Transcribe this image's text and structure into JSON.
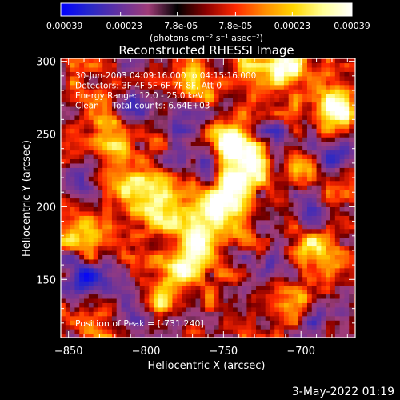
{
  "colorbar": {
    "tick_labels": [
      "-0.00039",
      "-0.00023",
      "-7.8e-05",
      "7.8e-05",
      "0.00023",
      "0.00039"
    ],
    "unit_label": "(photons cm⁻² s⁻¹ asec⁻²)",
    "range": [
      -0.00039,
      0.00039
    ],
    "colors": [
      "#0000ff",
      "#2828c8",
      "#6432a0",
      "#a03c78",
      "#000000",
      "#8c0000",
      "#ff2800",
      "#ff8c00",
      "#ffd700",
      "#ffff96",
      "#ffffff"
    ]
  },
  "chart_data": {
    "type": "heatmap",
    "title": "Reconstructed RHESSI Image",
    "xlabel": "Heliocentric X (arcsec)",
    "ylabel": "Heliocentric Y (arcsec)",
    "xlim": [
      -855,
      -665
    ],
    "ylim": [
      110,
      302
    ],
    "x_ticks": [
      -850,
      -800,
      -750,
      -700
    ],
    "y_ticks": [
      150,
      200,
      250,
      300
    ],
    "x_tick_labels": [
      "-850",
      "-800",
      "-750",
      "-700"
    ],
    "y_tick_labels": [
      "150",
      "200",
      "250",
      "300"
    ],
    "annotations": [
      "30-Jun-2003 04:09:16.000 to 04:15:16.000",
      "Detectors: 3F 4F 5F 6F 7F 8F, Att 0",
      "Energy Range: 12.0 - 25.0 keV",
      "Clean     Total counts: 6.64E+03"
    ],
    "peak_label": "Position of Peak = [-731,240]",
    "peak_position": [
      -731,
      240
    ],
    "bright_sources": [
      {
        "x": -745,
        "y": 244,
        "value": 1.0
      },
      {
        "x": -734,
        "y": 230,
        "value": 0.6
      },
      {
        "x": -752,
        "y": 200,
        "value": 0.95
      },
      {
        "x": -763,
        "y": 180,
        "value": 0.9
      },
      {
        "x": -775,
        "y": 162,
        "value": 0.75
      },
      {
        "x": -785,
        "y": 140,
        "value": 0.6
      },
      {
        "x": -742,
        "y": 214,
        "value": 0.8
      },
      {
        "x": -790,
        "y": 198,
        "value": 0.75
      },
      {
        "x": -808,
        "y": 212,
        "value": 0.7
      },
      {
        "x": -826,
        "y": 258,
        "value": 0.7
      },
      {
        "x": -818,
        "y": 240,
        "value": 0.55
      },
      {
        "x": -708,
        "y": 296,
        "value": 0.85
      },
      {
        "x": -680,
        "y": 268,
        "value": 0.85
      },
      {
        "x": -765,
        "y": 287,
        "value": 0.6
      },
      {
        "x": -700,
        "y": 224,
        "value": 0.5
      },
      {
        "x": -700,
        "y": 138,
        "value": 0.55
      },
      {
        "x": -735,
        "y": 300,
        "value": 0.5
      },
      {
        "x": -845,
        "y": 186,
        "value": 0.5
      },
      {
        "x": -820,
        "y": 180,
        "value": 0.4
      },
      {
        "x": -690,
        "y": 175,
        "value": 0.45
      }
    ],
    "dim_sources": [
      {
        "x": -840,
        "y": 150,
        "value": -0.9
      },
      {
        "x": -810,
        "y": 130,
        "value": -0.6
      },
      {
        "x": -810,
        "y": 270,
        "value": -0.7
      },
      {
        "x": -770,
        "y": 232,
        "value": -0.6
      },
      {
        "x": -695,
        "y": 195,
        "value": -0.7
      },
      {
        "x": -680,
        "y": 235,
        "value": -0.65
      },
      {
        "x": -720,
        "y": 160,
        "value": -0.6
      },
      {
        "x": -685,
        "y": 125,
        "value": -0.55
      },
      {
        "x": -845,
        "y": 220,
        "value": -0.5
      },
      {
        "x": -780,
        "y": 262,
        "value": -0.4
      },
      {
        "x": -715,
        "y": 250,
        "value": -0.5
      }
    ]
  },
  "footer": {
    "date": "3-May-2022 01:19"
  }
}
